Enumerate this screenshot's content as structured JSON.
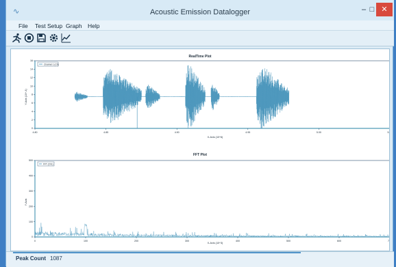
{
  "window": {
    "title": "Acoustic Emission Datalogger",
    "minimize_glyph": "–",
    "maximize_glyph": "□",
    "close_glyph": "✕",
    "app_glyph": "∿"
  },
  "menu": {
    "items": [
      {
        "label": "File"
      },
      {
        "label": "Test Setup"
      },
      {
        "label": "Graph"
      },
      {
        "label": "Help"
      }
    ]
  },
  "toolbar": {
    "buttons": [
      {
        "icon": "run-icon"
      },
      {
        "icon": "stop-icon"
      },
      {
        "icon": "save-icon"
      },
      {
        "icon": "settings-icon"
      },
      {
        "icon": "graph-icon"
      }
    ]
  },
  "colors": {
    "signal": "#3f8fb8",
    "axis": "#4f9ab8",
    "frame": "#2f4f6f"
  },
  "status": {
    "peak_count_label": "Peak Count",
    "peak_count_value": "1087"
  },
  "chart_data": [
    {
      "type": "line",
      "title": "RealTime Plot",
      "xlabel": "X-Axis (10^6)",
      "ylabel": "Y-Axis (10^-4)",
      "xlim": [
        4.8,
        5.05
      ],
      "ylim": [
        0,
        16
      ],
      "x_ticks": [
        "4.80",
        "4.85",
        "4.90",
        "4.95",
        "5.00",
        "5.05"
      ],
      "y_ticks": [
        "0",
        "2",
        "4",
        "6",
        "8",
        "10",
        "12",
        "14",
        "16"
      ],
      "legend": "Channel 1 (Ch)",
      "series": [
        {
          "baseline": 7.5,
          "bursts": [
            {
              "x0": 4.828,
              "x1": 4.837,
              "amp": 1.2
            },
            {
              "x0": 4.848,
              "x1": 4.875,
              "amp": 7.0
            },
            {
              "x0": 4.878,
              "x1": 4.888,
              "amp": 3.0
            },
            {
              "x0": 4.906,
              "x1": 4.92,
              "amp": 8.2
            },
            {
              "x0": 4.924,
              "x1": 4.93,
              "amp": 3.5
            },
            {
              "x0": 4.956,
              "x1": 4.979,
              "amp": 7.8
            }
          ],
          "x_end": 4.979,
          "spike": {
            "x": 4.872,
            "y": 0
          }
        }
      ]
    },
    {
      "type": "line",
      "title": "FFT Plot",
      "xlabel": "X-Axis (10^3)",
      "ylabel": "Y-Axis",
      "xlim": [
        0,
        700
      ],
      "ylim": [
        0,
        500
      ],
      "x_ticks": [
        "0",
        "100",
        "200",
        "300",
        "400",
        "500",
        "600",
        "700"
      ],
      "y_ticks": [
        "0",
        "100",
        "200",
        "300",
        "400",
        "500"
      ],
      "legend": "FFT (Ch1)",
      "series": [
        {
          "decay_from": 60,
          "decay_to": 8,
          "peak_x": 100,
          "peak_y": 62,
          "noise_floor": 5
        }
      ]
    }
  ]
}
